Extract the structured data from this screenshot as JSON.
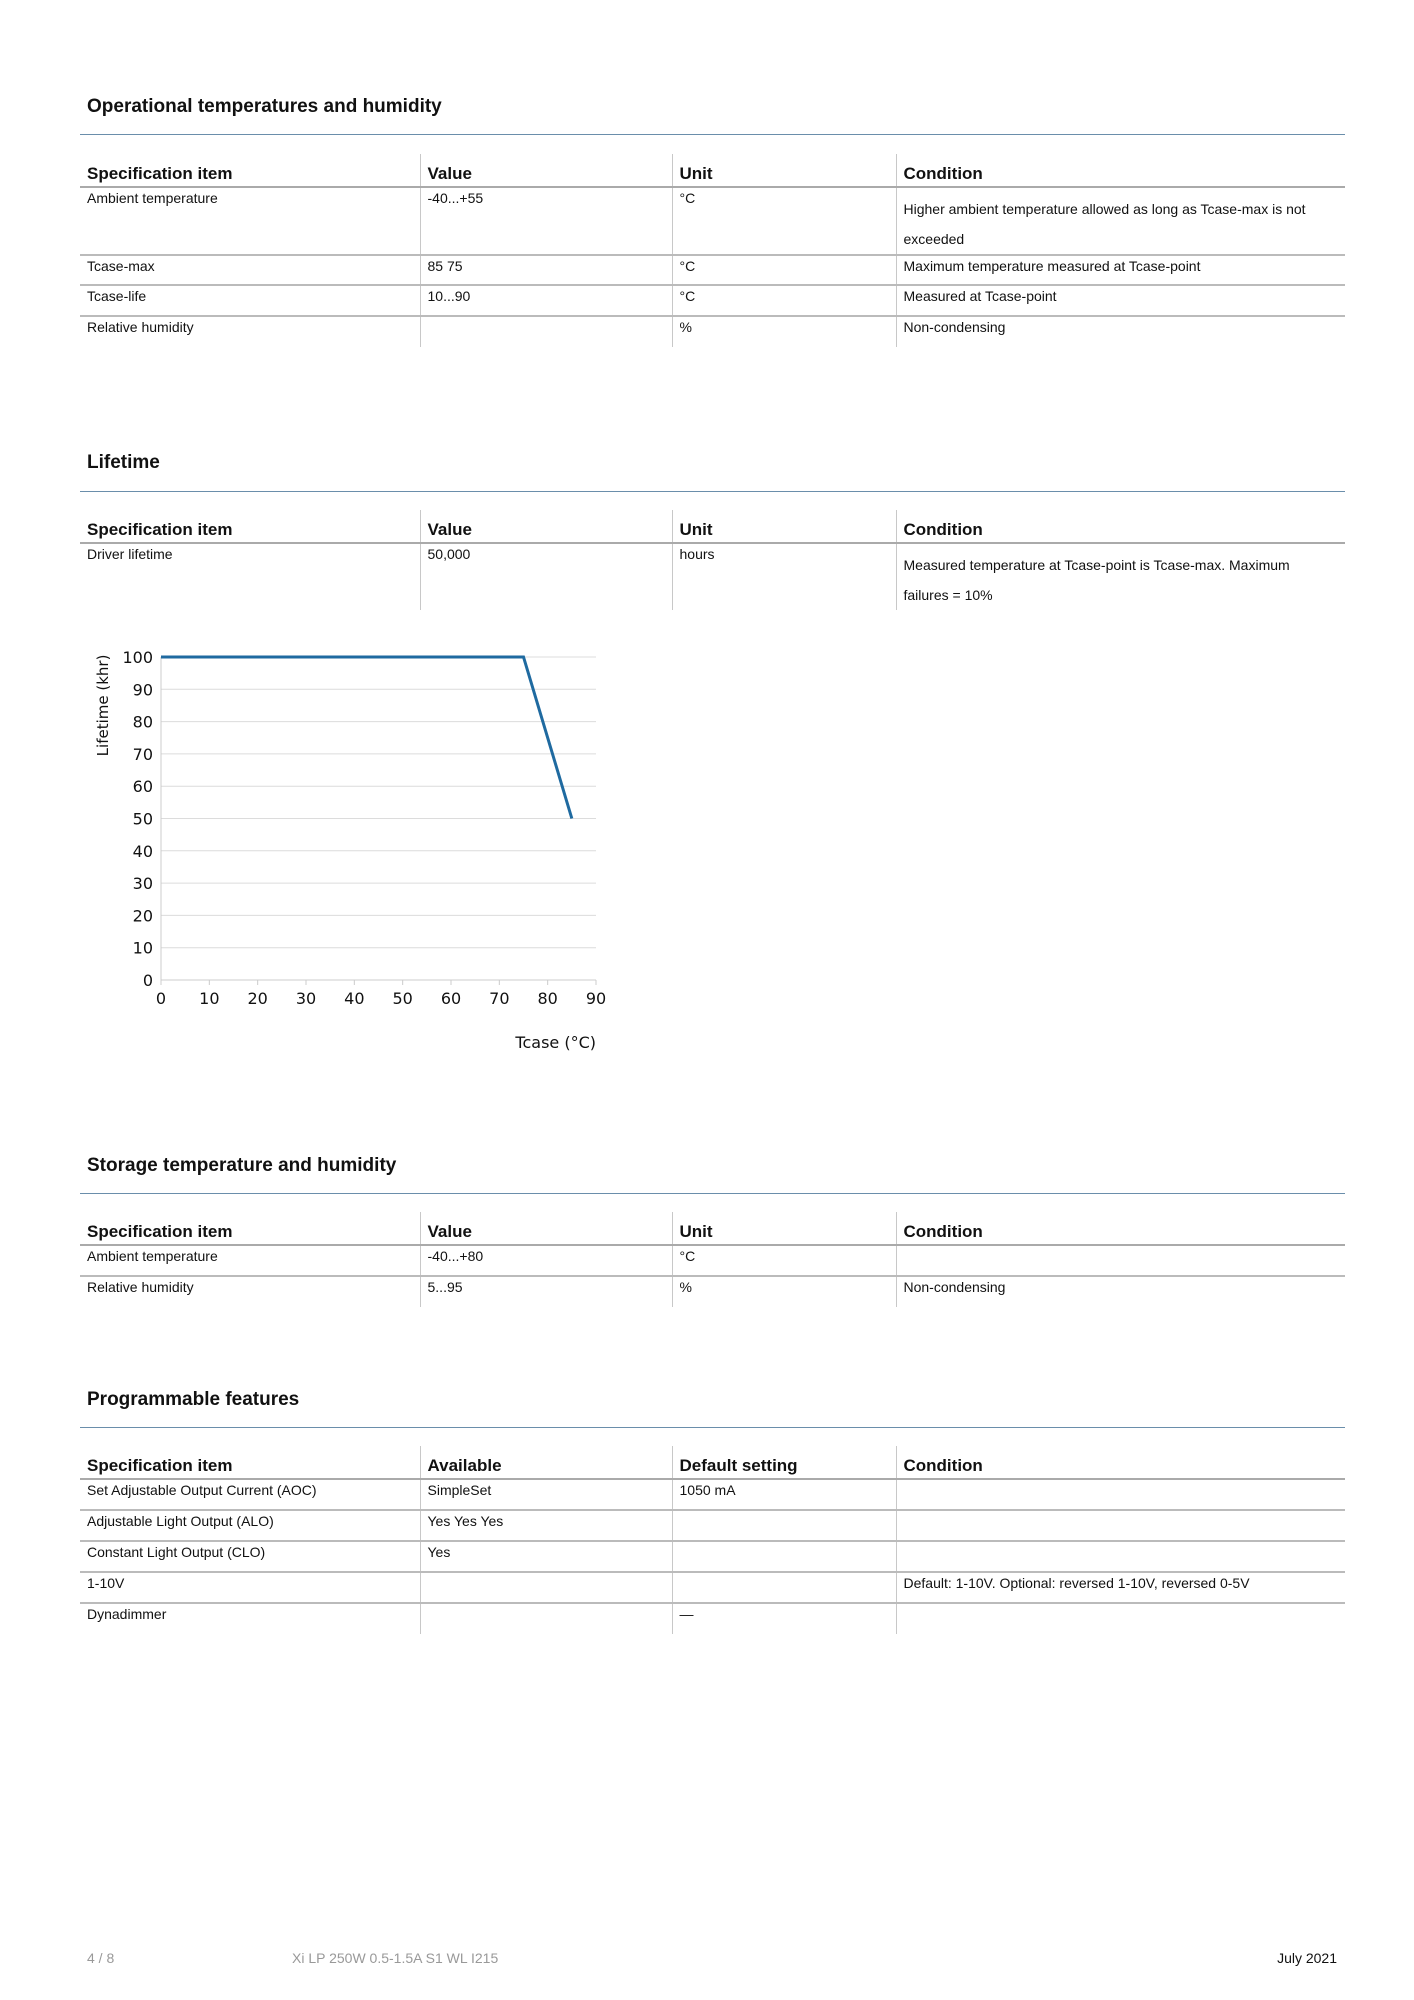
{
  "sections": {
    "operational": {
      "title": "Operational temperatures and humidity",
      "headers": [
        "Specification item",
        "Value",
        "Unit",
        "Condition"
      ],
      "rows": [
        [
          "Ambient temperature",
          "-40...+55",
          "°C",
          "Higher ambient temperature allowed as long as Tcase-max is not exceeded"
        ],
        [
          "Tcase-max",
          "85   75",
          "°C",
          "Maximum temperature measured at Tcase-point"
        ],
        [
          "Tcase-life",
          "10...90",
          "°C",
          "Measured at Tcase-point"
        ],
        [
          "Relative humidity",
          "",
          "%",
          "Non-condensing"
        ]
      ]
    },
    "lifetime": {
      "title": "Lifetime",
      "headers": [
        "Specification item",
        "Value",
        "Unit",
        "Condition"
      ],
      "rows": [
        [
          "Driver lifetime",
          "50,000",
          "hours",
          "Measured temperature at Tcase-point is Tcase-max. Maximum failures = 10%"
        ]
      ]
    },
    "storage": {
      "title": "Storage temperature and humidity",
      "headers": [
        "Specification item",
        "Value",
        "Unit",
        "Condition"
      ],
      "rows": [
        [
          "Ambient temperature",
          "-40...+80",
          "°C",
          ""
        ],
        [
          "Relative humidity",
          "5...95",
          "%",
          "Non-condensing"
        ]
      ]
    },
    "programmable": {
      "title": "Programmable features",
      "headers": [
        "Specification item",
        "Available",
        "Default setting",
        "Condition"
      ],
      "rows": [
        [
          "Set Adjustable Output Current (AOC)",
          "SimpleSet",
          "1050 mA",
          ""
        ],
        [
          "Adjustable Light Output (ALO)",
          "Yes Yes Yes",
          "",
          ""
        ],
        [
          "Constant Light Output (CLO)",
          "Yes",
          "",
          ""
        ],
        [
          "1-10V",
          "",
          "",
          "Default: 1-10V. Optional: reversed 1-10V, reversed 0-5V"
        ],
        [
          "Dynadimmer",
          "",
          "—",
          ""
        ]
      ]
    }
  },
  "chart_data": {
    "type": "line",
    "xlabel": "Tcase (°C)",
    "ylabel": "Lifetime (khr)",
    "xlim": [
      0,
      90
    ],
    "ylim": [
      0,
      100
    ],
    "xticks": [
      "0",
      "10",
      "20",
      "30",
      "40",
      "50",
      "60",
      "70",
      "80",
      "90"
    ],
    "yticks": [
      "0",
      "10",
      "20",
      "30",
      "40",
      "50",
      "60",
      "70",
      "80",
      "90",
      "100"
    ],
    "grid": "horizontal",
    "series": [
      {
        "x": [
          0,
          75,
          85
        ],
        "y": [
          100,
          100,
          50
        ],
        "color": "#1f6aa0"
      }
    ]
  },
  "footer": {
    "page": "4 / 8",
    "product": "Xi LP 250W 0.5-1.5A S1 WL I215",
    "date": "July 2021"
  },
  "colors": {
    "rule": "#6a8eab",
    "line": "#1f6aa0"
  }
}
